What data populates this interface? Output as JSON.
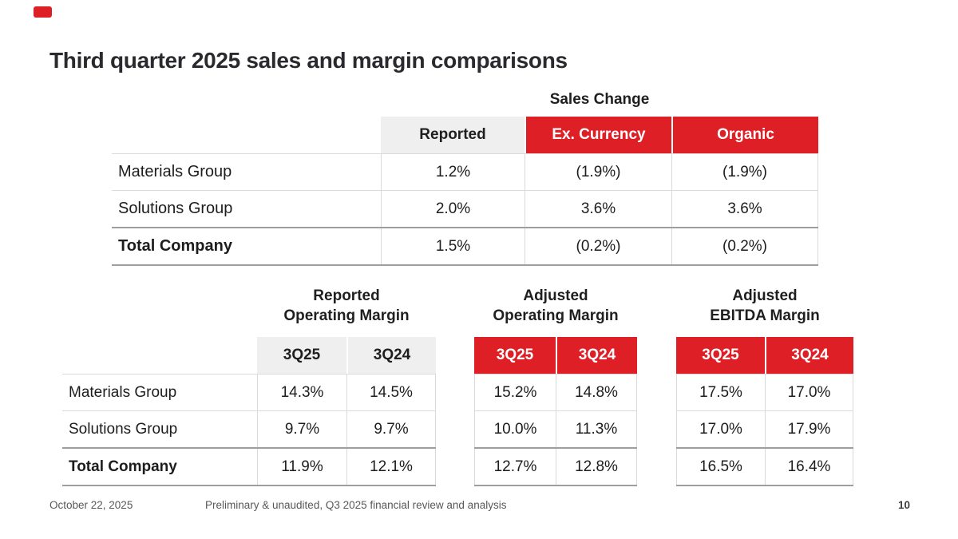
{
  "slide": {
    "title": "Third quarter 2025 sales and margin comparisons"
  },
  "sales_table": {
    "caption": "Sales Change",
    "columns": [
      "Reported",
      "Ex. Currency",
      "Organic"
    ],
    "rows": [
      {
        "label": "Materials Group",
        "values": [
          "1.2%",
          "(1.9%)",
          "(1.9%)"
        ]
      },
      {
        "label": "Solutions Group",
        "values": [
          "2.0%",
          "3.6%",
          "3.6%"
        ]
      },
      {
        "label": "Total Company",
        "values": [
          "1.5%",
          "(0.2%)",
          "(0.2%)"
        ]
      }
    ]
  },
  "margin_section": {
    "row_labels": [
      "Materials Group",
      "Solutions Group",
      "Total Company"
    ],
    "tables": [
      {
        "title_lines": [
          "Reported",
          "Operating Margin"
        ],
        "header_style": "grey",
        "columns": [
          "3Q25",
          "3Q24"
        ],
        "rows": [
          [
            "14.3%",
            "14.5%"
          ],
          [
            "9.7%",
            "9.7%"
          ],
          [
            "11.9%",
            "12.1%"
          ]
        ]
      },
      {
        "title_lines": [
          "Adjusted",
          "Operating Margin"
        ],
        "header_style": "red",
        "columns": [
          "3Q25",
          "3Q24"
        ],
        "rows": [
          [
            "15.2%",
            "14.8%"
          ],
          [
            "10.0%",
            "11.3%"
          ],
          [
            "12.7%",
            "12.8%"
          ]
        ]
      },
      {
        "title_lines": [
          "Adjusted",
          "EBITDA Margin"
        ],
        "header_style": "red",
        "columns": [
          "3Q25",
          "3Q24"
        ],
        "rows": [
          [
            "17.5%",
            "17.0%"
          ],
          [
            "17.0%",
            "17.9%"
          ],
          [
            "16.5%",
            "16.4%"
          ]
        ]
      }
    ]
  },
  "footer": {
    "date": "October 22, 2025",
    "disclaimer": "Preliminary & unaudited, Q3 2025 financial review and analysis",
    "page_number": "10"
  },
  "colors": {
    "accent_red": "#DF1F26",
    "header_grey": "#EFEFEF",
    "row_border": "#DADADA",
    "strong_border": "#9E9E9E"
  }
}
